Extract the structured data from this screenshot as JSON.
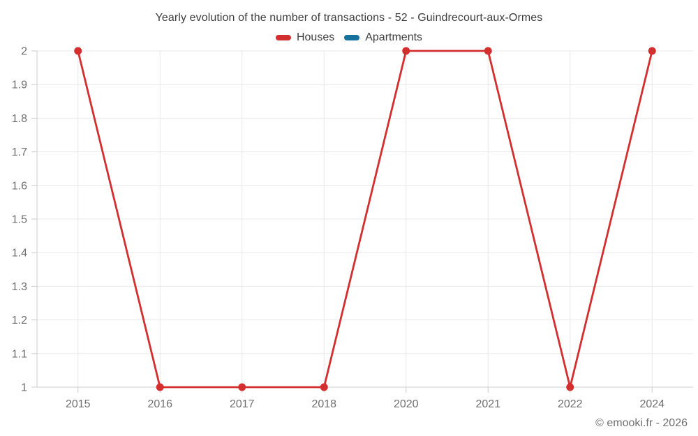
{
  "footer": {
    "text": "© emooki.fr - 2026"
  },
  "chart_data": {
    "type": "line",
    "title": "Yearly evolution of the number of transactions - 52 - Guindrecourt-aux-Ormes",
    "categories": [
      "2015",
      "2016",
      "2017",
      "2018",
      "2020",
      "2021",
      "2022",
      "2024"
    ],
    "series": [
      {
        "name": "Houses",
        "color": "#d32f2f",
        "values": [
          2,
          1,
          1,
          1,
          2,
          2,
          1,
          2
        ]
      },
      {
        "name": "Apartments",
        "color": "#17739e",
        "values": [
          null,
          null,
          null,
          null,
          null,
          null,
          null,
          null
        ]
      }
    ],
    "xlabel": "",
    "ylabel": "",
    "ylim": [
      1,
      2
    ],
    "y_ticks": [
      1,
      1.1,
      1.2,
      1.3,
      1.4,
      1.5,
      1.6,
      1.7,
      1.8,
      1.9,
      2
    ],
    "grid": true,
    "legend_position": "top"
  },
  "style": {
    "grid_color": "#e8e8e8",
    "axis_color": "#cccccc",
    "tick_color": "#cccccc",
    "tick_label_color": "#6f6f6f",
    "title_color": "#3e3e3e",
    "legend_text_color": "#3e3e3e",
    "footer_color": "#6f6f6f"
  }
}
